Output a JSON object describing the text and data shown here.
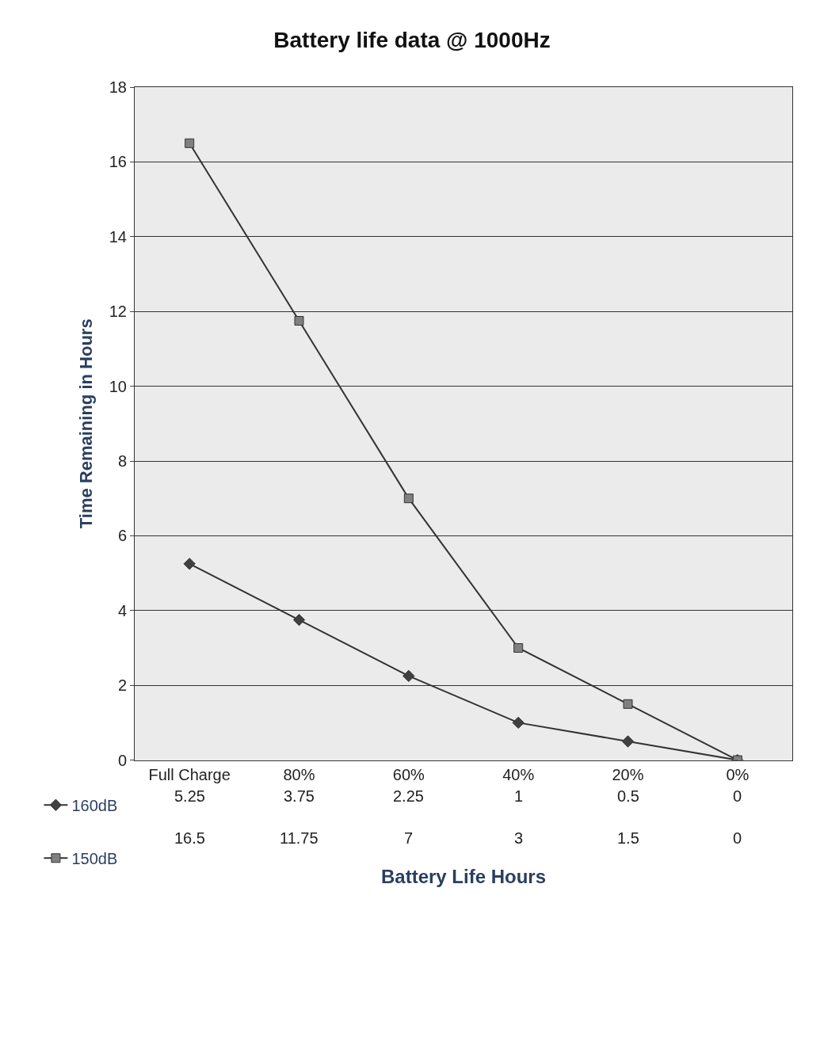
{
  "chart_data": {
    "type": "line",
    "title": "Battery life data @ 1000Hz",
    "xlabel": "Battery Life Hours",
    "ylabel": "Time Remaining in Hours",
    "categories": [
      "Full Charge",
      "80%",
      "60%",
      "40%",
      "20%",
      "0%"
    ],
    "series": [
      {
        "name": "160dB",
        "color": "#404040",
        "marker": "diamond",
        "values": [
          5.25,
          3.75,
          2.25,
          1,
          0.5,
          0
        ]
      },
      {
        "name": "150dB",
        "color": "#808080",
        "marker": "square",
        "values": [
          16.5,
          11.75,
          7,
          3,
          1.5,
          0
        ]
      }
    ],
    "ylim": [
      0,
      18
    ],
    "yticks": [
      0,
      2,
      4,
      6,
      8,
      10,
      12,
      14,
      16,
      18
    ],
    "grid": "y",
    "legend": "bottom left",
    "data_labels": true
  }
}
